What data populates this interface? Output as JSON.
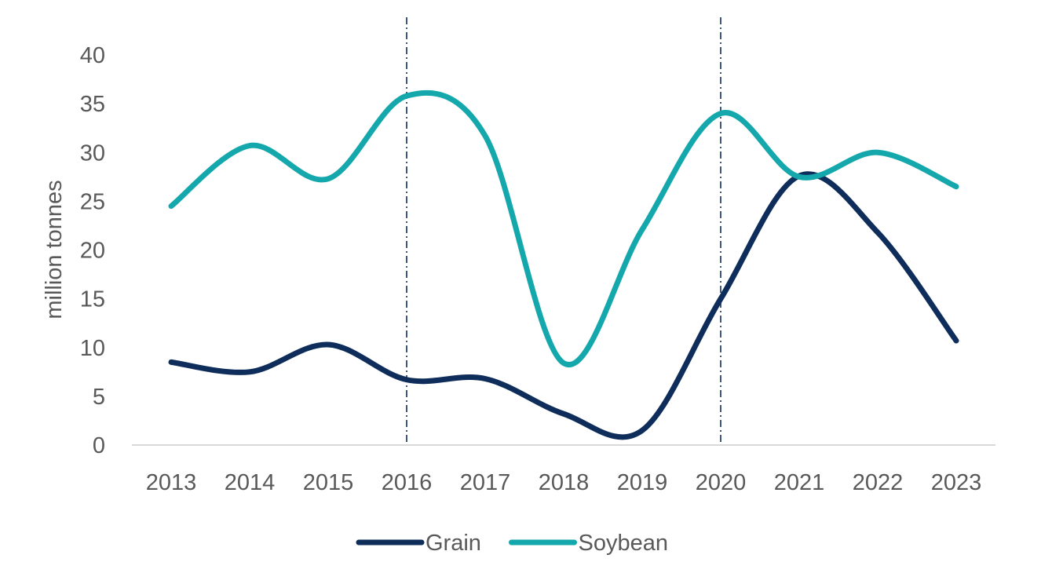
{
  "chart_data": {
    "type": "line",
    "title": "",
    "xlabel": "",
    "ylabel": "million tonnes",
    "categories": [
      "2013",
      "2014",
      "2015",
      "2016",
      "2017",
      "2018",
      "2019",
      "2020",
      "2021",
      "2022",
      "2023"
    ],
    "series": [
      {
        "name": "Grain",
        "color": "#0e2d5a",
        "values": [
          8.5,
          7.5,
          10.3,
          6.7,
          6.8,
          3.2,
          1.5,
          15.0,
          27.6,
          21.8,
          10.7
        ]
      },
      {
        "name": "Soybean",
        "color": "#14a8ad",
        "values": [
          24.5,
          30.7,
          27.3,
          35.8,
          31.7,
          8.4,
          22.1,
          34.0,
          27.5,
          30.0,
          26.5
        ]
      }
    ],
    "ylim": [
      0,
      40
    ],
    "yticks": [
      0,
      5,
      10,
      15,
      20,
      25,
      30,
      35,
      40
    ],
    "reference_lines": [
      {
        "x": "2016",
        "style": "dash-dot",
        "color": "#0e2d5a"
      },
      {
        "x": "2020",
        "style": "dash-dot",
        "color": "#0e2d5a"
      }
    ],
    "grid": false,
    "legend": {
      "position": "bottom"
    },
    "axis_color": "#d9d9d9"
  }
}
